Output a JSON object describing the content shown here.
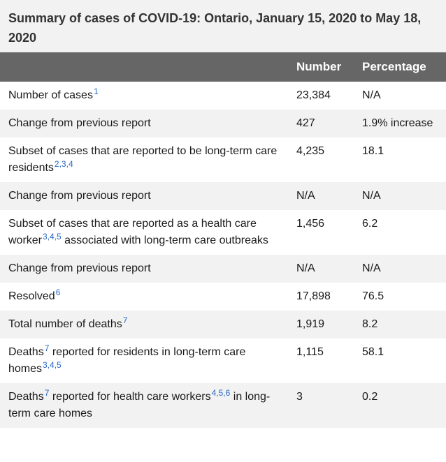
{
  "caption": "Summary of cases of COVID-19: Ontario, January 15, 2020 to May 18, 2020",
  "headers": {
    "label": "",
    "number": "Number",
    "percentage": "Percentage"
  },
  "rows": [
    {
      "label": "Number of cases",
      "sup": "1",
      "label2": "",
      "sup2": "",
      "number": "23,384",
      "percentage": "N/A"
    },
    {
      "label": "Change from previous report",
      "sup": "",
      "label2": "",
      "sup2": "",
      "number": "427",
      "percentage": "1.9% increase"
    },
    {
      "label": "Subset of cases that are reported to be long-term care residents",
      "sup": "2,3,4",
      "label2": "",
      "sup2": "",
      "number": "4,235",
      "percentage": "18.1"
    },
    {
      "label": "Change from previous report",
      "sup": "",
      "label2": "",
      "sup2": "",
      "number": "N/A",
      "percentage": "N/A"
    },
    {
      "label": "Subset of cases that are reported as a health care worker",
      "sup": "3,4,5",
      "label2": " associated with long-term care outbreaks",
      "sup2": "",
      "number": "1,456",
      "percentage": "6.2"
    },
    {
      "label": "Change from previous report",
      "sup": "",
      "label2": "",
      "sup2": "",
      "number": "N/A",
      "percentage": "N/A"
    },
    {
      "label": "Resolved",
      "sup": "6",
      "label2": "",
      "sup2": "",
      "number": "17,898",
      "percentage": "76.5"
    },
    {
      "label": "Total number of deaths",
      "sup": "7",
      "label2": "",
      "sup2": "",
      "number": "1,919",
      "percentage": "8.2"
    },
    {
      "label": "Deaths",
      "sup": "7",
      "label2": " reported for residents in long-term care homes",
      "sup2": "3,4,5",
      "number": "1,115",
      "percentage": "58.1"
    },
    {
      "label": "Deaths",
      "sup": "7",
      "label2": " reported for health care workers",
      "sup2": "4,5,6",
      "label3": " in long-term care homes",
      "number": "3",
      "percentage": "0.2"
    }
  ]
}
